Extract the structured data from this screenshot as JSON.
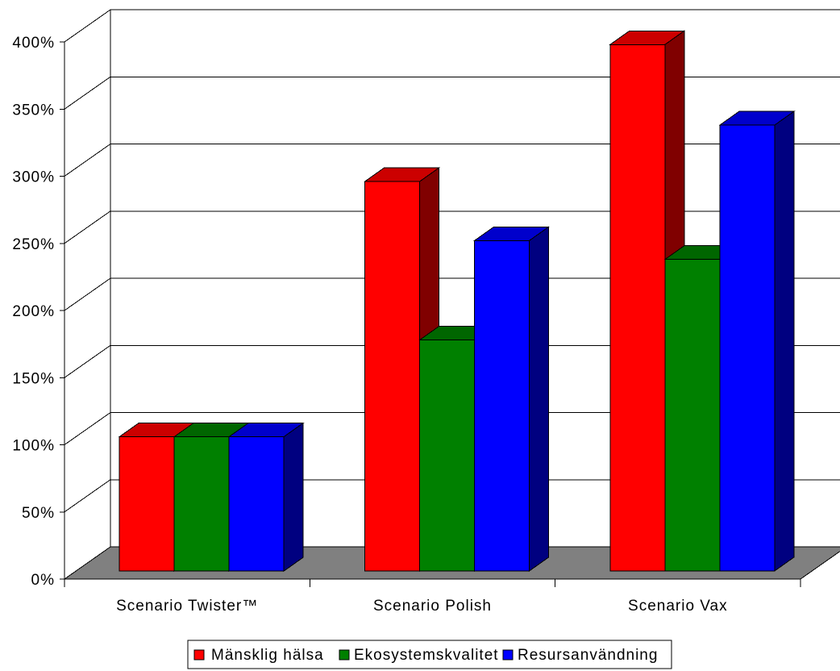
{
  "chart_data": {
    "type": "bar",
    "three_d": true,
    "categories": [
      "Scenario Twister™",
      "Scenario Polish",
      "Scenario Vax"
    ],
    "series": [
      {
        "name": "Mänsklig hälsa",
        "color": "#FF0000",
        "values": [
          100,
          290,
          392
        ]
      },
      {
        "name": "Ekosystemskvalitet",
        "color": "#008000",
        "values": [
          100,
          172,
          232
        ]
      },
      {
        "name": "Resursanvändning",
        "color": "#0000FF",
        "values": [
          100,
          246,
          332
        ]
      }
    ],
    "ylim": [
      0,
      400
    ],
    "yticks": [
      0,
      50,
      100,
      150,
      200,
      250,
      300,
      350,
      400
    ],
    "ytick_labels": [
      "0%",
      "50%",
      "100%",
      "150%",
      "200%",
      "250%",
      "300%",
      "350%",
      "400%"
    ],
    "grid": true,
    "legend_position": "bottom",
    "wall_color": "#FFFFFF",
    "floor_color": "#808080"
  }
}
